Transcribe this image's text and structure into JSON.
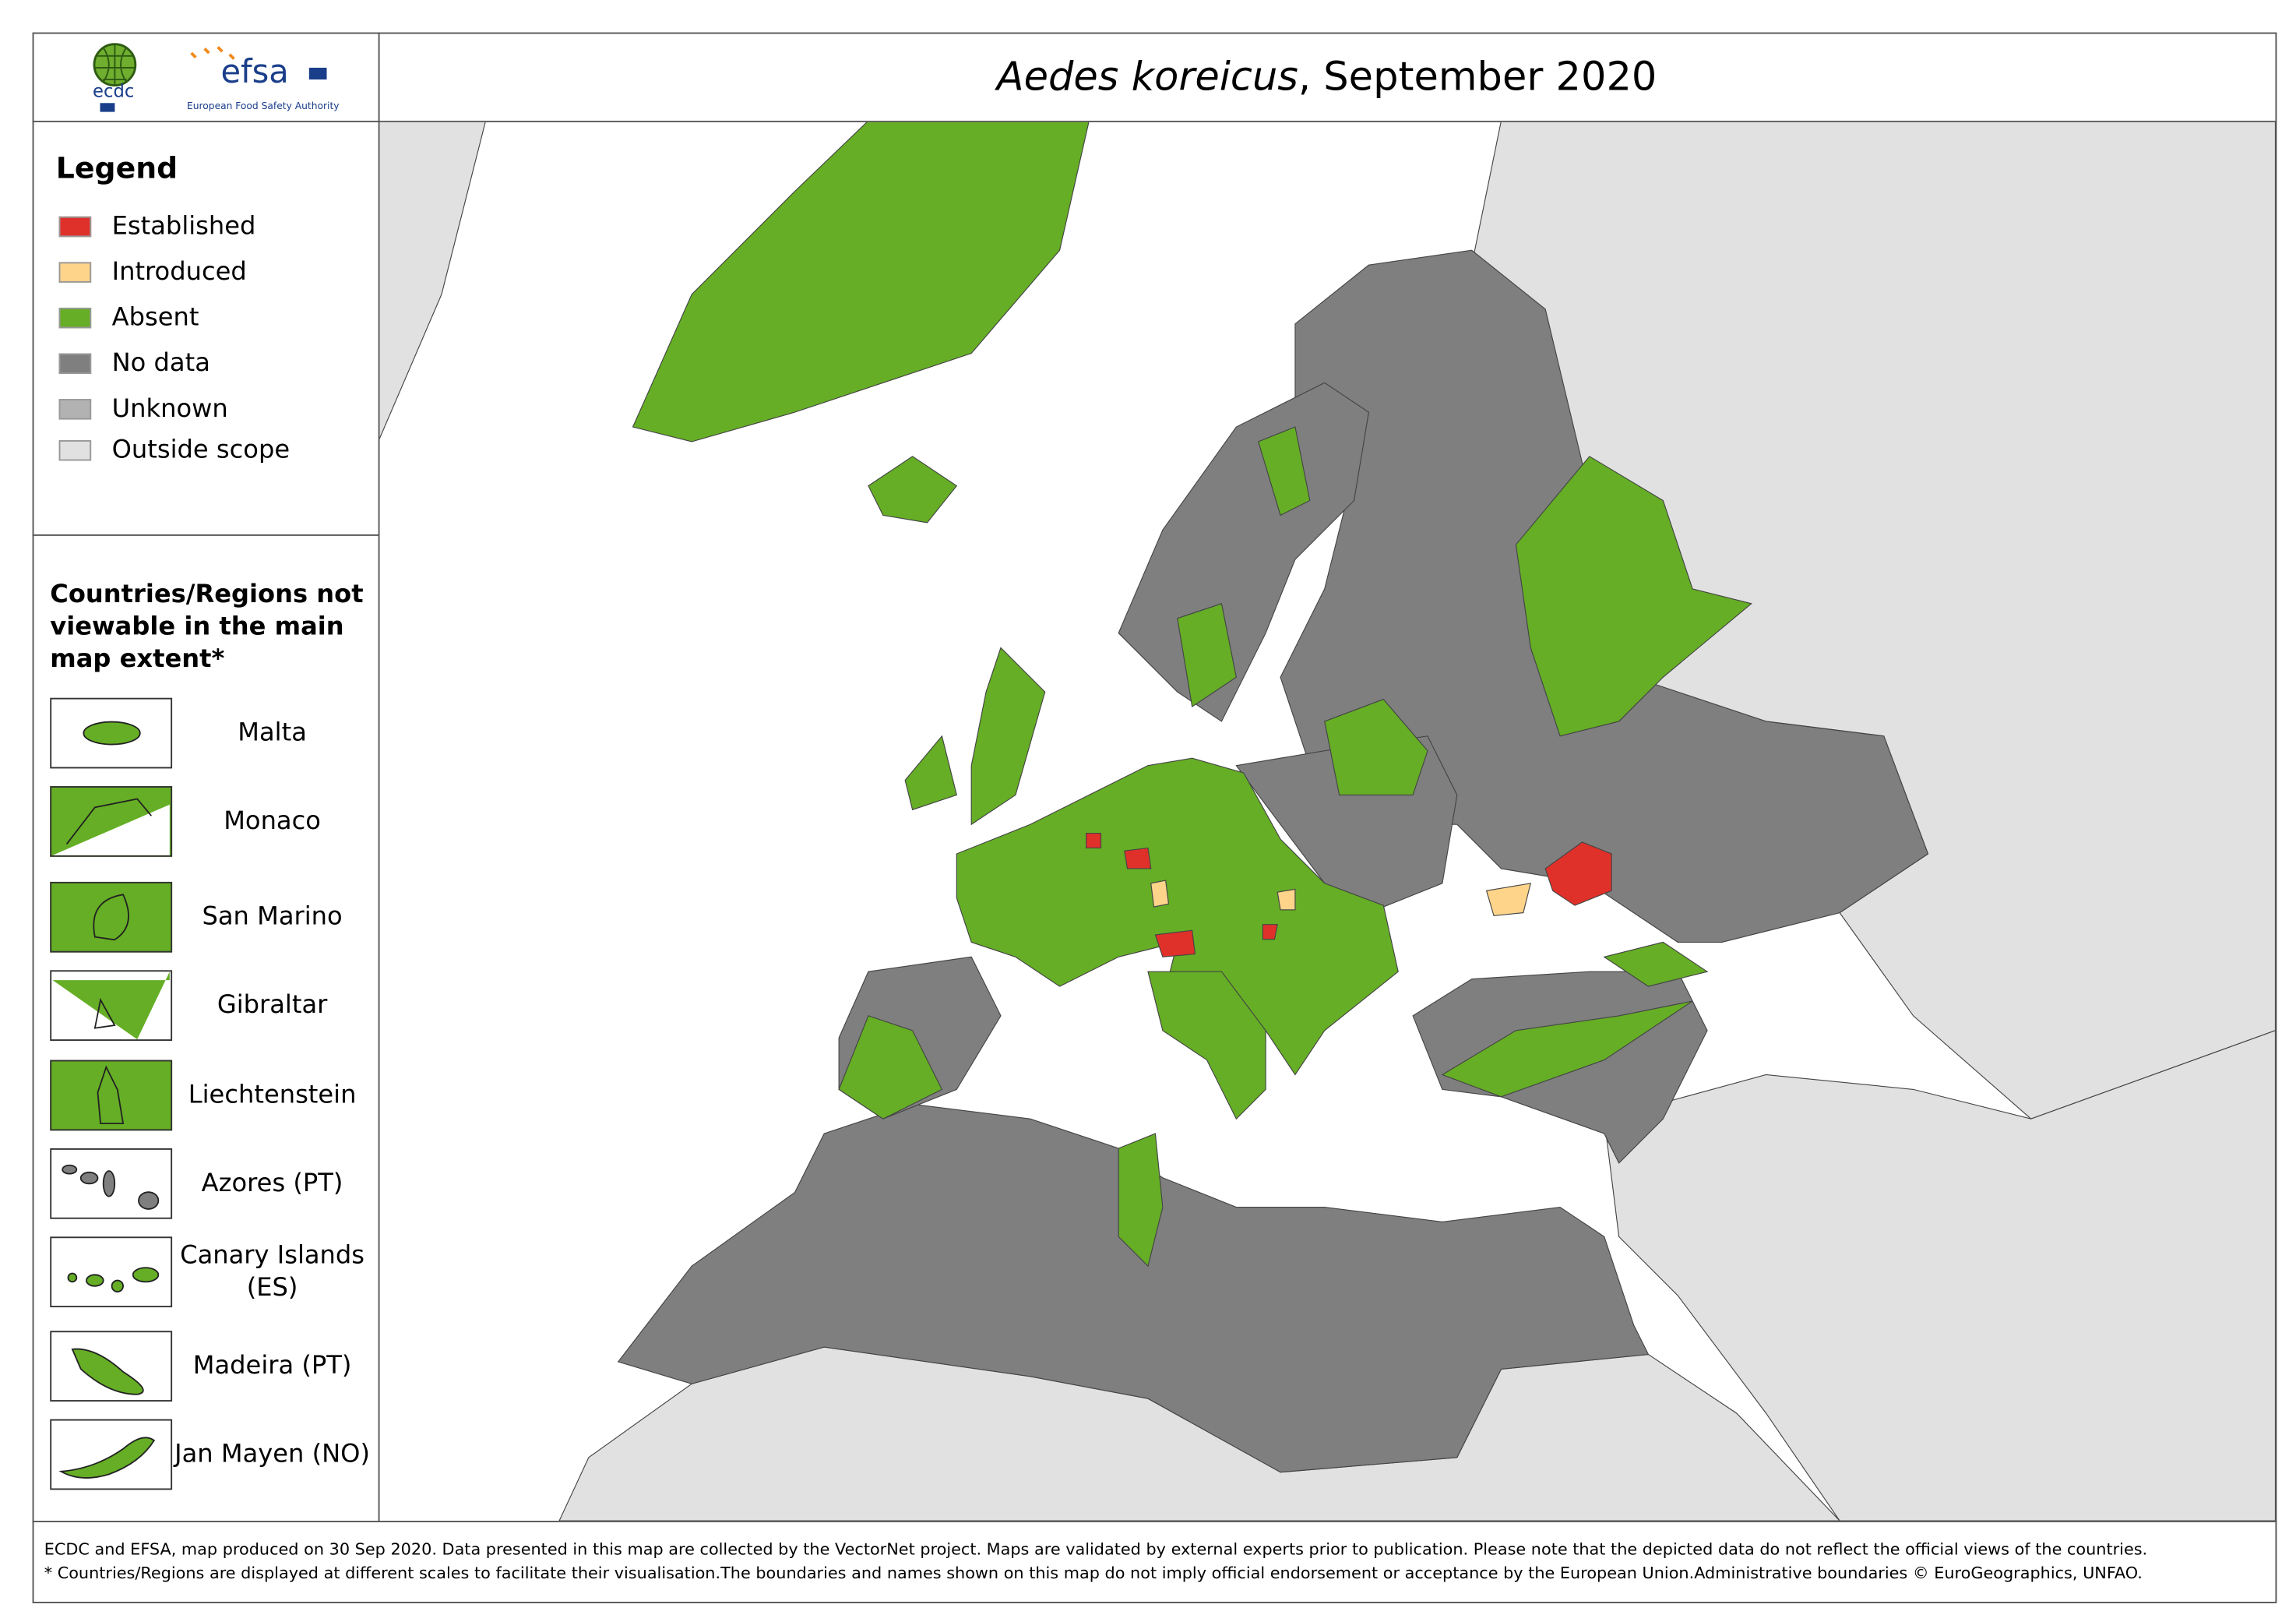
{
  "header": {
    "logo_ecdc": "ecdc",
    "logo_efsa": "efsa",
    "logo_efsa_sub": "European Food Safety Authority",
    "title_species": "Aedes koreicus",
    "title_rest": ", September 2020"
  },
  "legend": {
    "title": "Legend",
    "items": [
      {
        "label": "Established",
        "color": "#e0302a"
      },
      {
        "label": "Introduced",
        "color": "#fdd48a"
      },
      {
        "label": "Absent",
        "color": "#65ae25"
      },
      {
        "label": "No data",
        "color": "#7f7f7f"
      },
      {
        "label": "Unknown",
        "color": "#b2b2b2"
      },
      {
        "label": "Outside scope",
        "color": "#e1e1e1"
      }
    ]
  },
  "insets": {
    "title": "Countries/Regions not viewable in the main map extent*",
    "items": [
      "Malta",
      "Monaco",
      "San Marino",
      "Gibraltar",
      "Liechtenstein",
      "Azores (PT)",
      "Canary Islands (ES)",
      "Madeira (PT)",
      "Jan Mayen (NO)"
    ]
  },
  "footer": {
    "lines": [
      "ECDC and EFSA, map produced on 30 Sep 2020. Data presented in this map are collected by the VectorNet project. Maps are validated by external experts prior to publication. Please note that the depicted data do not reflect the official views of the countries.",
      "* Countries/Regions are displayed at different scales to facilitate their visualisation.The boundaries and names shown on this map do not imply official endorsement or acceptance by the European Union.Administrative boundaries © EuroGeographics, UNFAO."
    ]
  }
}
